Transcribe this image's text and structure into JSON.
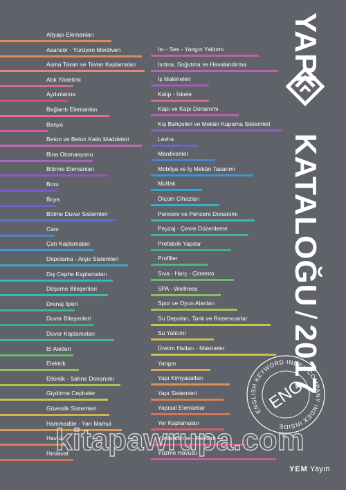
{
  "title": {
    "word1": "YAPI",
    "word2": "KATALOĞU",
    "separator": "/",
    "year": "2017"
  },
  "left_items": [
    {
      "label": "Altyapı Elemanları",
      "color": "#e08a57",
      "bar_frac": 0.73
    },
    {
      "label": "Asansör - Yürüyen Merdiven",
      "color": "#e08a57",
      "bar_frac": 0.93
    },
    {
      "label": "Asma Tavan ve Tavan Kaplamaları",
      "color": "#e58a72",
      "bar_frac": 0.95
    },
    {
      "label": "Atık Yönetimi",
      "color": "#d56f8a",
      "bar_frac": 0.48
    },
    {
      "label": "Aydınlatma",
      "color": "#d24f7e",
      "bar_frac": 0.45
    },
    {
      "label": "Bağlantı Elemanları",
      "color": "#e86a8e",
      "bar_frac": 0.72
    },
    {
      "label": "Banyo",
      "color": "#d957a6",
      "bar_frac": 0.32
    },
    {
      "label": "Beton ve Beton Katkı Maddeleri",
      "color": "#c968b8",
      "bar_frac": 0.93
    },
    {
      "label": "Bina Otomasyonu",
      "color": "#a864c2",
      "bar_frac": 0.61
    },
    {
      "label": "Bitirme Elemanları",
      "color": "#9356c5",
      "bar_frac": 0.71
    },
    {
      "label": "Boru",
      "color": "#7d5ac8",
      "bar_frac": 0.38
    },
    {
      "label": "Boya",
      "color": "#6a63c9",
      "bar_frac": 0.37
    },
    {
      "label": "Bölme Duvar Sistemleri",
      "color": "#5b74cf",
      "bar_frac": 0.76
    },
    {
      "label": "Cam",
      "color": "#4e86d3",
      "bar_frac": 0.36
    },
    {
      "label": "Çatı Kaplamaları",
      "color": "#3e9ad8",
      "bar_frac": 0.62
    },
    {
      "label": "Depolama - Arşiv Sistemleri",
      "color": "#36a9d3",
      "bar_frac": 0.84
    },
    {
      "label": "Dış Cephe Kaplamaları",
      "color": "#3ab4c6",
      "bar_frac": 0.74
    },
    {
      "label": "Döşeme Bileşenleri",
      "color": "#3eb9b2",
      "bar_frac": 0.71
    },
    {
      "label": "Drenaj İşleri",
      "color": "#3fb69c",
      "bar_frac": 0.49
    },
    {
      "label": "Duvar Bileşenleri",
      "color": "#33b38f",
      "bar_frac": 0.62
    },
    {
      "label": "Duvar Kaplamaları",
      "color": "#3cbc9d",
      "bar_frac": 0.75
    },
    {
      "label": "El Aletleri",
      "color": "#68bc6b",
      "bar_frac": 0.48
    },
    {
      "label": "Elektrik",
      "color": "#8ec05c",
      "bar_frac": 0.52
    },
    {
      "label": "Etkinlik - Sahne Donanımı",
      "color": "#aac54f",
      "bar_frac": 0.79
    },
    {
      "label": "Giydirme Cepheler",
      "color": "#c5c84a",
      "bar_frac": 0.71
    },
    {
      "label": "Güvenlik Sistemleri",
      "color": "#d3b44a",
      "bar_frac": 0.72
    },
    {
      "label": "Hammadde - Yarı Mamul",
      "color": "#d99b4f",
      "bar_frac": 0.8
    },
    {
      "label": "Havuz",
      "color": "#d98456",
      "bar_frac": 0.43
    },
    {
      "label": "Hırdavat",
      "color": "#d9705e",
      "bar_frac": 0.48
    }
  ],
  "right_items": [
    {
      "label": "Isı - Ses - Yangın Yalıtımı",
      "color": "#c75da7",
      "bar_frac": 0.82
    },
    {
      "label": "Isıtma, Soğutma ve Havalandırma",
      "color": "#b862b9",
      "bar_frac": 0.97
    },
    {
      "label": "İş Makineleri",
      "color": "#9d5fc5",
      "bar_frac": 0.44
    },
    {
      "label": "Kalıp - İskele",
      "color": "#d56e8e",
      "bar_frac": 0.44
    },
    {
      "label": "Kapı ve Kapı Donanımı",
      "color": "#c15cb3",
      "bar_frac": 0.67
    },
    {
      "label": "Kış Bahçeleri ve Mekân Kapama Sistemleri",
      "color": "#8e5fc7",
      "bar_frac": 1.0
    },
    {
      "label": "Levha",
      "color": "#6c63cb",
      "bar_frac": 0.36
    },
    {
      "label": "Merdivenler",
      "color": "#4f7fd2",
      "bar_frac": 0.49
    },
    {
      "label": "Mobilya ve İç Mekân Tasarımı",
      "color": "#3c97d8",
      "bar_frac": 0.78
    },
    {
      "label": "Mutfak",
      "color": "#34a6d6",
      "bar_frac": 0.39
    },
    {
      "label": "Ölçüm Cihazları",
      "color": "#37b0c8",
      "bar_frac": 0.52
    },
    {
      "label": "Pencere ve Pencere Donanımı",
      "color": "#3db9b5",
      "bar_frac": 0.79
    },
    {
      "label": "Peyzaj - Çevre Düzenleme",
      "color": "#3fb79e",
      "bar_frac": 0.74
    },
    {
      "label": "Prefabrik Yapılar",
      "color": "#3ab38f",
      "bar_frac": 0.61
    },
    {
      "label": "Profiller",
      "color": "#4fb882",
      "bar_frac": 0.43
    },
    {
      "label": "Sıva - Harç - Çimento",
      "color": "#6bbd6c",
      "bar_frac": 0.63
    },
    {
      "label": "SPA - Wellness",
      "color": "#8cc05e",
      "bar_frac": 0.53
    },
    {
      "label": "Spor ve Oyun Alanları",
      "color": "#a8c552",
      "bar_frac": 0.66
    },
    {
      "label": "Su Depoları, Tank ve Rezervuarlar",
      "color": "#c6c94b",
      "bar_frac": 0.91
    },
    {
      "label": "Su Yalıtımı",
      "color": "#d3bd4a",
      "bar_frac": 0.48
    },
    {
      "label": "Üretim Hatları - Makineler",
      "color": "#cdc348",
      "bar_frac": 0.95
    },
    {
      "label": "Yangın",
      "color": "#d9a851",
      "bar_frac": 0.45
    },
    {
      "label": "Yapı Kimyasalları",
      "color": "#d99554",
      "bar_frac": 0.6
    },
    {
      "label": "Yapı Sistemleri",
      "color": "#d98158",
      "bar_frac": 0.55
    },
    {
      "label": "Yapısal Elemanlar",
      "color": "#da7262",
      "bar_frac": 0.6
    },
    {
      "label": "Yer Kaplamaları",
      "color": "#d9636d",
      "bar_frac": 0.56
    },
    {
      "label": "Yönlendirme - Reklam",
      "color": "#d5587d",
      "bar_frac": 0.72
    },
    {
      "label": "Yüzme Havuzu",
      "color": "#c95c9a",
      "bar_frac": 0.95
    }
  ],
  "seal": {
    "center": "ENG",
    "ring_text": "ENGLISH KEYWORD INDEX   COMPANY INDEX INSIDE"
  },
  "publisher": {
    "name_bold": "YEM",
    "name_rest": "Yayın"
  },
  "watermark": "kitapawrupa.com",
  "accent_colors": {
    "background": "#5f6268",
    "text": "#ffffff"
  }
}
